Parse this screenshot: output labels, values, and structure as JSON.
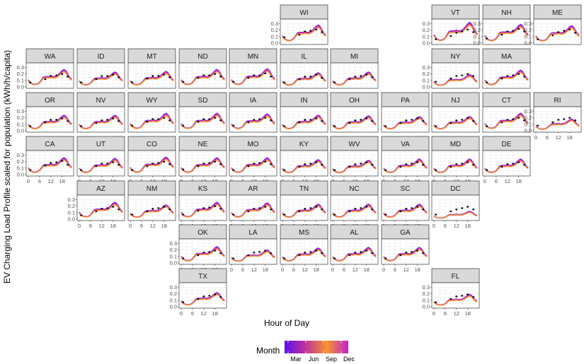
{
  "chart_data": {
    "type": "line",
    "ylabel": "EV Charging Load Profile scaled for population (kWh/h/capita)",
    "xlabel": "Hour of Day",
    "x_ticks": [
      0,
      6,
      12,
      18
    ],
    "y_ticks": [
      0.0,
      0.1,
      0.2,
      0.3
    ],
    "xlim": [
      0,
      23
    ],
    "ylim": [
      0,
      0.35
    ],
    "legend": {
      "title": "Month",
      "type": "color-gradient",
      "labels": [
        "Mar",
        "Jun",
        "Sep",
        "Dec"
      ],
      "colors": [
        "#5a10f0",
        "#c1349a",
        "#f5942e",
        "#c11fd0"
      ],
      "placement": "bottom"
    },
    "shape": {
      "hours": [
        0,
        1,
        2,
        3,
        4,
        5,
        6,
        7,
        8,
        9,
        10,
        11,
        12,
        13,
        14,
        15,
        16,
        17,
        18,
        19,
        20,
        21,
        22,
        23
      ],
      "values": [
        0.11,
        0.07,
        0.05,
        0.04,
        0.04,
        0.05,
        0.07,
        0.11,
        0.15,
        0.16,
        0.16,
        0.16,
        0.17,
        0.16,
        0.16,
        0.17,
        0.19,
        0.22,
        0.25,
        0.27,
        0.25,
        0.2,
        0.15,
        0.12
      ]
    },
    "observed_hours": [
      1,
      9,
      12,
      15,
      18,
      21
    ],
    "states": [
      {
        "name": "WI",
        "peak": 0.28,
        "obs": [
          0.09,
          0.13,
          0.18,
          0.19,
          0.21,
          0.17
        ]
      },
      {
        "name": "VT",
        "peak": 0.32,
        "obs": [
          0.06,
          0.11,
          0.16,
          0.18,
          0.21,
          0.17
        ]
      },
      {
        "name": "NH",
        "peak": 0.29,
        "obs": [
          0.07,
          0.13,
          0.18,
          0.19,
          0.22,
          0.18
        ]
      },
      {
        "name": "ME",
        "peak": 0.27,
        "obs": [
          0.06,
          0.12,
          0.17,
          0.19,
          0.21,
          0.16
        ]
      },
      {
        "name": "WA",
        "peak": 0.27,
        "obs": [
          0.07,
          0.12,
          0.17,
          0.18,
          0.2,
          0.16
        ]
      },
      {
        "name": "ID",
        "peak": 0.23,
        "obs": [
          0.07,
          0.12,
          0.17,
          0.17,
          0.19,
          0.15
        ]
      },
      {
        "name": "MT",
        "peak": 0.24,
        "obs": [
          0.07,
          0.13,
          0.17,
          0.17,
          0.19,
          0.15
        ]
      },
      {
        "name": "ND",
        "peak": 0.27,
        "obs": [
          0.08,
          0.14,
          0.18,
          0.18,
          0.2,
          0.16
        ]
      },
      {
        "name": "MN",
        "peak": 0.28,
        "obs": [
          0.08,
          0.14,
          0.18,
          0.18,
          0.21,
          0.16
        ]
      },
      {
        "name": "IL",
        "peak": 0.22,
        "obs": [
          0.07,
          0.12,
          0.16,
          0.16,
          0.19,
          0.14
        ]
      },
      {
        "name": "MI",
        "peak": 0.23,
        "obs": [
          0.07,
          0.12,
          0.16,
          0.17,
          0.19,
          0.15
        ]
      },
      {
        "name": "NY",
        "peak": 0.19,
        "obs": [
          0.08,
          0.13,
          0.17,
          0.18,
          0.2,
          0.17
        ]
      },
      {
        "name": "MA",
        "peak": 0.26,
        "obs": [
          0.07,
          0.13,
          0.17,
          0.18,
          0.2,
          0.16
        ]
      },
      {
        "name": "OR",
        "peak": 0.24,
        "obs": [
          0.07,
          0.13,
          0.17,
          0.17,
          0.19,
          0.15
        ]
      },
      {
        "name": "NV",
        "peak": 0.24,
        "obs": [
          0.07,
          0.12,
          0.16,
          0.17,
          0.19,
          0.15
        ]
      },
      {
        "name": "WY",
        "peak": 0.27,
        "obs": [
          0.08,
          0.14,
          0.18,
          0.18,
          0.2,
          0.16
        ]
      },
      {
        "name": "SD",
        "peak": 0.27,
        "obs": [
          0.08,
          0.14,
          0.18,
          0.18,
          0.2,
          0.16
        ]
      },
      {
        "name": "IA",
        "peak": 0.26,
        "obs": [
          0.08,
          0.13,
          0.17,
          0.18,
          0.2,
          0.16
        ]
      },
      {
        "name": "IN",
        "peak": 0.24,
        "obs": [
          0.07,
          0.13,
          0.17,
          0.17,
          0.19,
          0.15
        ]
      },
      {
        "name": "OH",
        "peak": 0.23,
        "obs": [
          0.07,
          0.12,
          0.16,
          0.17,
          0.19,
          0.15
        ]
      },
      {
        "name": "PA",
        "peak": 0.22,
        "obs": [
          0.07,
          0.12,
          0.16,
          0.17,
          0.19,
          0.15
        ]
      },
      {
        "name": "NJ",
        "peak": 0.22,
        "obs": [
          0.07,
          0.12,
          0.16,
          0.17,
          0.2,
          0.15
        ]
      },
      {
        "name": "CT",
        "peak": 0.27,
        "obs": [
          0.07,
          0.13,
          0.17,
          0.18,
          0.2,
          0.16
        ]
      },
      {
        "name": "RI",
        "peak": 0.18,
        "obs": [
          0.08,
          0.13,
          0.17,
          0.18,
          0.2,
          0.16
        ]
      },
      {
        "name": "CA",
        "peak": 0.26,
        "obs": [
          0.07,
          0.14,
          0.18,
          0.19,
          0.21,
          0.15
        ]
      },
      {
        "name": "UT",
        "peak": 0.25,
        "obs": [
          0.07,
          0.13,
          0.17,
          0.17,
          0.19,
          0.15
        ]
      },
      {
        "name": "CO",
        "peak": 0.27,
        "obs": [
          0.07,
          0.13,
          0.17,
          0.18,
          0.2,
          0.16
        ]
      },
      {
        "name": "NE",
        "peak": 0.26,
        "obs": [
          0.08,
          0.13,
          0.17,
          0.18,
          0.2,
          0.16
        ]
      },
      {
        "name": "MO",
        "peak": 0.26,
        "obs": [
          0.07,
          0.13,
          0.17,
          0.18,
          0.2,
          0.16
        ]
      },
      {
        "name": "KY",
        "peak": 0.23,
        "obs": [
          0.07,
          0.12,
          0.16,
          0.17,
          0.19,
          0.15
        ]
      },
      {
        "name": "WV",
        "peak": 0.22,
        "obs": [
          0.07,
          0.12,
          0.16,
          0.17,
          0.19,
          0.15
        ]
      },
      {
        "name": "VA",
        "peak": 0.24,
        "obs": [
          0.07,
          0.12,
          0.16,
          0.17,
          0.19,
          0.15
        ]
      },
      {
        "name": "MD",
        "peak": 0.24,
        "obs": [
          0.07,
          0.12,
          0.16,
          0.17,
          0.19,
          0.15
        ]
      },
      {
        "name": "DE",
        "peak": 0.24,
        "obs": [
          0.07,
          0.12,
          0.16,
          0.17,
          0.19,
          0.15
        ]
      },
      {
        "name": "AZ",
        "peak": 0.26,
        "obs": [
          0.06,
          0.12,
          0.16,
          0.17,
          0.19,
          0.15
        ]
      },
      {
        "name": "NM",
        "peak": 0.22,
        "obs": [
          0.07,
          0.12,
          0.16,
          0.17,
          0.19,
          0.15
        ]
      },
      {
        "name": "KS",
        "peak": 0.26,
        "obs": [
          0.07,
          0.13,
          0.17,
          0.18,
          0.2,
          0.16
        ]
      },
      {
        "name": "AR",
        "peak": 0.25,
        "obs": [
          0.07,
          0.12,
          0.16,
          0.17,
          0.19,
          0.15
        ]
      },
      {
        "name": "TN",
        "peak": 0.23,
        "obs": [
          0.07,
          0.12,
          0.16,
          0.17,
          0.19,
          0.15
        ]
      },
      {
        "name": "NC",
        "peak": 0.23,
        "obs": [
          0.07,
          0.12,
          0.16,
          0.17,
          0.19,
          0.15
        ]
      },
      {
        "name": "SC",
        "peak": 0.23,
        "obs": [
          0.07,
          0.12,
          0.16,
          0.17,
          0.19,
          0.15
        ]
      },
      {
        "name": "DC",
        "peak": 0.12,
        "obs": [
          0.07,
          0.12,
          0.15,
          0.17,
          0.19,
          0.15
        ]
      },
      {
        "name": "OK",
        "peak": 0.25,
        "obs": [
          0.07,
          0.12,
          0.16,
          0.17,
          0.19,
          0.15
        ]
      },
      {
        "name": "LA",
        "peak": 0.2,
        "obs": [
          0.07,
          0.12,
          0.16,
          0.17,
          0.19,
          0.15
        ]
      },
      {
        "name": "MS",
        "peak": 0.23,
        "obs": [
          0.07,
          0.12,
          0.16,
          0.17,
          0.19,
          0.15
        ]
      },
      {
        "name": "AL",
        "peak": 0.24,
        "obs": [
          0.07,
          0.12,
          0.16,
          0.17,
          0.19,
          0.15
        ]
      },
      {
        "name": "GA",
        "peak": 0.24,
        "obs": [
          0.07,
          0.12,
          0.16,
          0.17,
          0.19,
          0.15
        ]
      },
      {
        "name": "TX",
        "peak": 0.22,
        "obs": [
          0.07,
          0.12,
          0.16,
          0.17,
          0.19,
          0.15
        ]
      },
      {
        "name": "FL",
        "peak": 0.19,
        "obs": [
          0.07,
          0.12,
          0.16,
          0.17,
          0.19,
          0.15
        ]
      }
    ]
  }
}
